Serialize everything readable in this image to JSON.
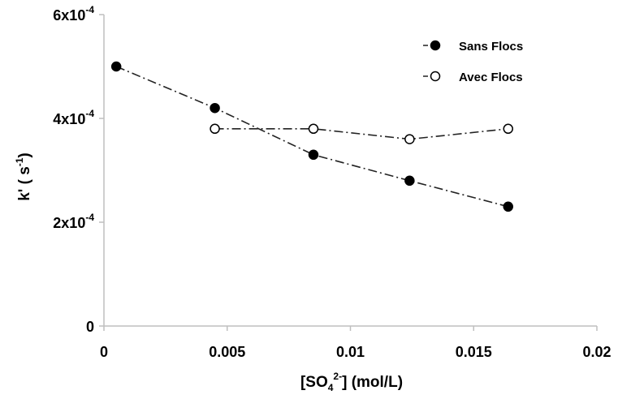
{
  "chart_data": {
    "type": "scatter",
    "xlabel": {
      "prefix": "[SO",
      "sub": "4",
      "sup": "2-",
      "suffix": "] (mol/L)"
    },
    "ylabel": {
      "prefix": "k' ( s",
      "sup": "-1",
      "suffix": ")"
    },
    "xlim": [
      0,
      0.02
    ],
    "ylim": [
      0,
      0.0006
    ],
    "x_ticks": [
      {
        "value": 0,
        "label": "0"
      },
      {
        "value": 0.005,
        "label": "0.005"
      },
      {
        "value": 0.01,
        "label": "0.01"
      },
      {
        "value": 0.015,
        "label": "0.015"
      },
      {
        "value": 0.02,
        "label": "0.02"
      }
    ],
    "y_ticks": [
      {
        "value": 0,
        "base": "0",
        "exp": ""
      },
      {
        "value": 0.0002,
        "base": "2x10",
        "exp": "-4"
      },
      {
        "value": 0.0004,
        "base": "4x10",
        "exp": "-4"
      },
      {
        "value": 0.0006,
        "base": "6x10",
        "exp": "-4"
      }
    ],
    "grid": false,
    "legend_position": "top-right",
    "series": [
      {
        "name": "Sans Flocs",
        "marker": "filled-circle",
        "line": "dash-dot",
        "x": [
          0.0005,
          0.0045,
          0.0085,
          0.0124,
          0.0164
        ],
        "y": [
          0.0005,
          0.00042,
          0.00033,
          0.00028,
          0.00023
        ]
      },
      {
        "name": "Avec Flocs",
        "marker": "open-circle",
        "line": "dash-dot",
        "x": [
          0.0045,
          0.0085,
          0.0124,
          0.0164
        ],
        "y": [
          0.00038,
          0.00038,
          0.00036,
          0.00038
        ]
      }
    ]
  }
}
